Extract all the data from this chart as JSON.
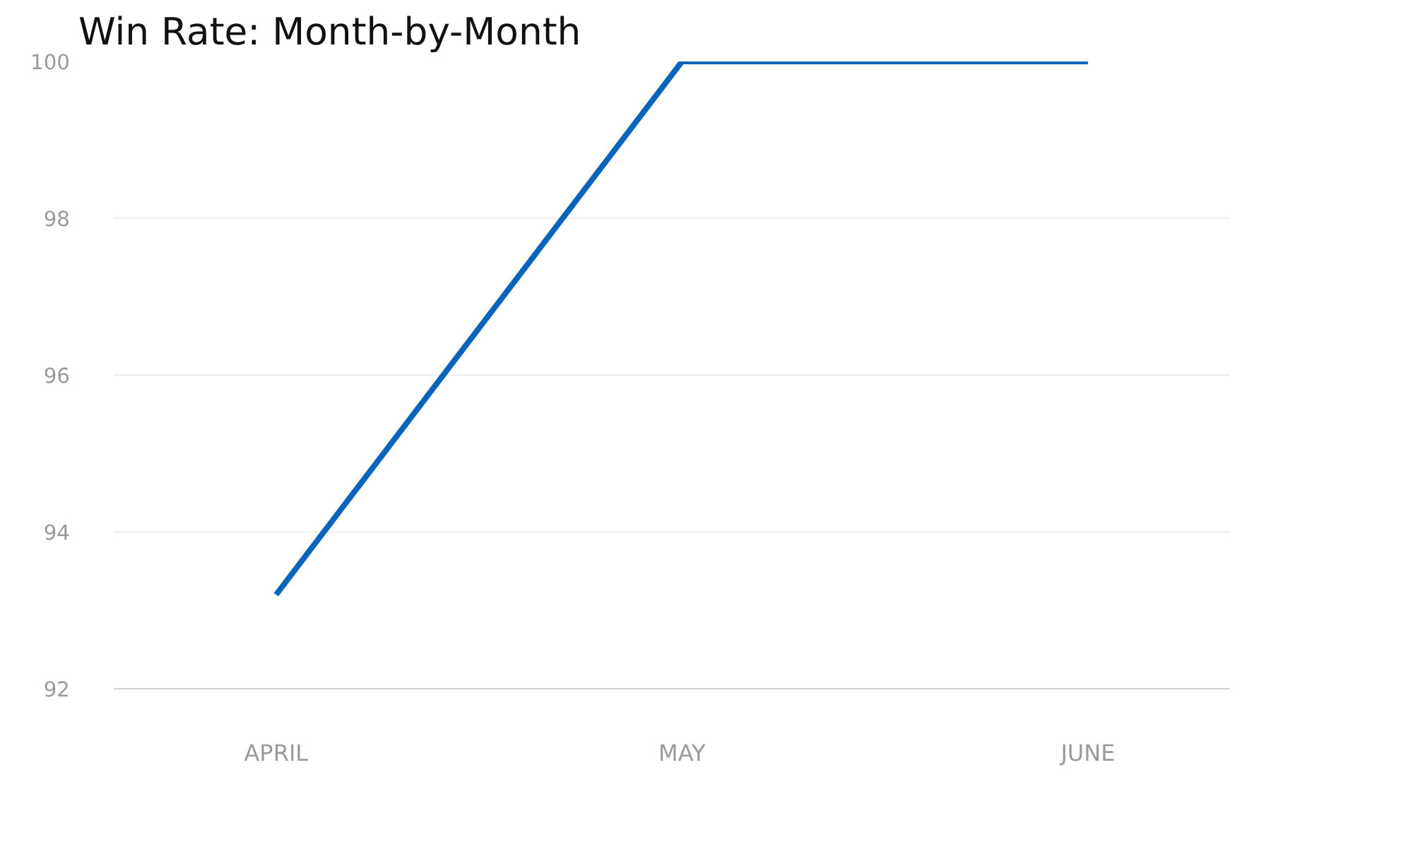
{
  "chart_data": {
    "type": "line",
    "title": "Win Rate: Month-by-Month",
    "categories": [
      "APRIL",
      "MAY",
      "JUNE"
    ],
    "series": [
      {
        "color": "#0a64bc",
        "values": [
          93.2,
          100,
          100
        ]
      }
    ],
    "ylim": [
      92,
      100
    ],
    "yticks": [
      92,
      94,
      96,
      98,
      100
    ],
    "grid": "y",
    "marker": "none",
    "line_style": "solid"
  }
}
